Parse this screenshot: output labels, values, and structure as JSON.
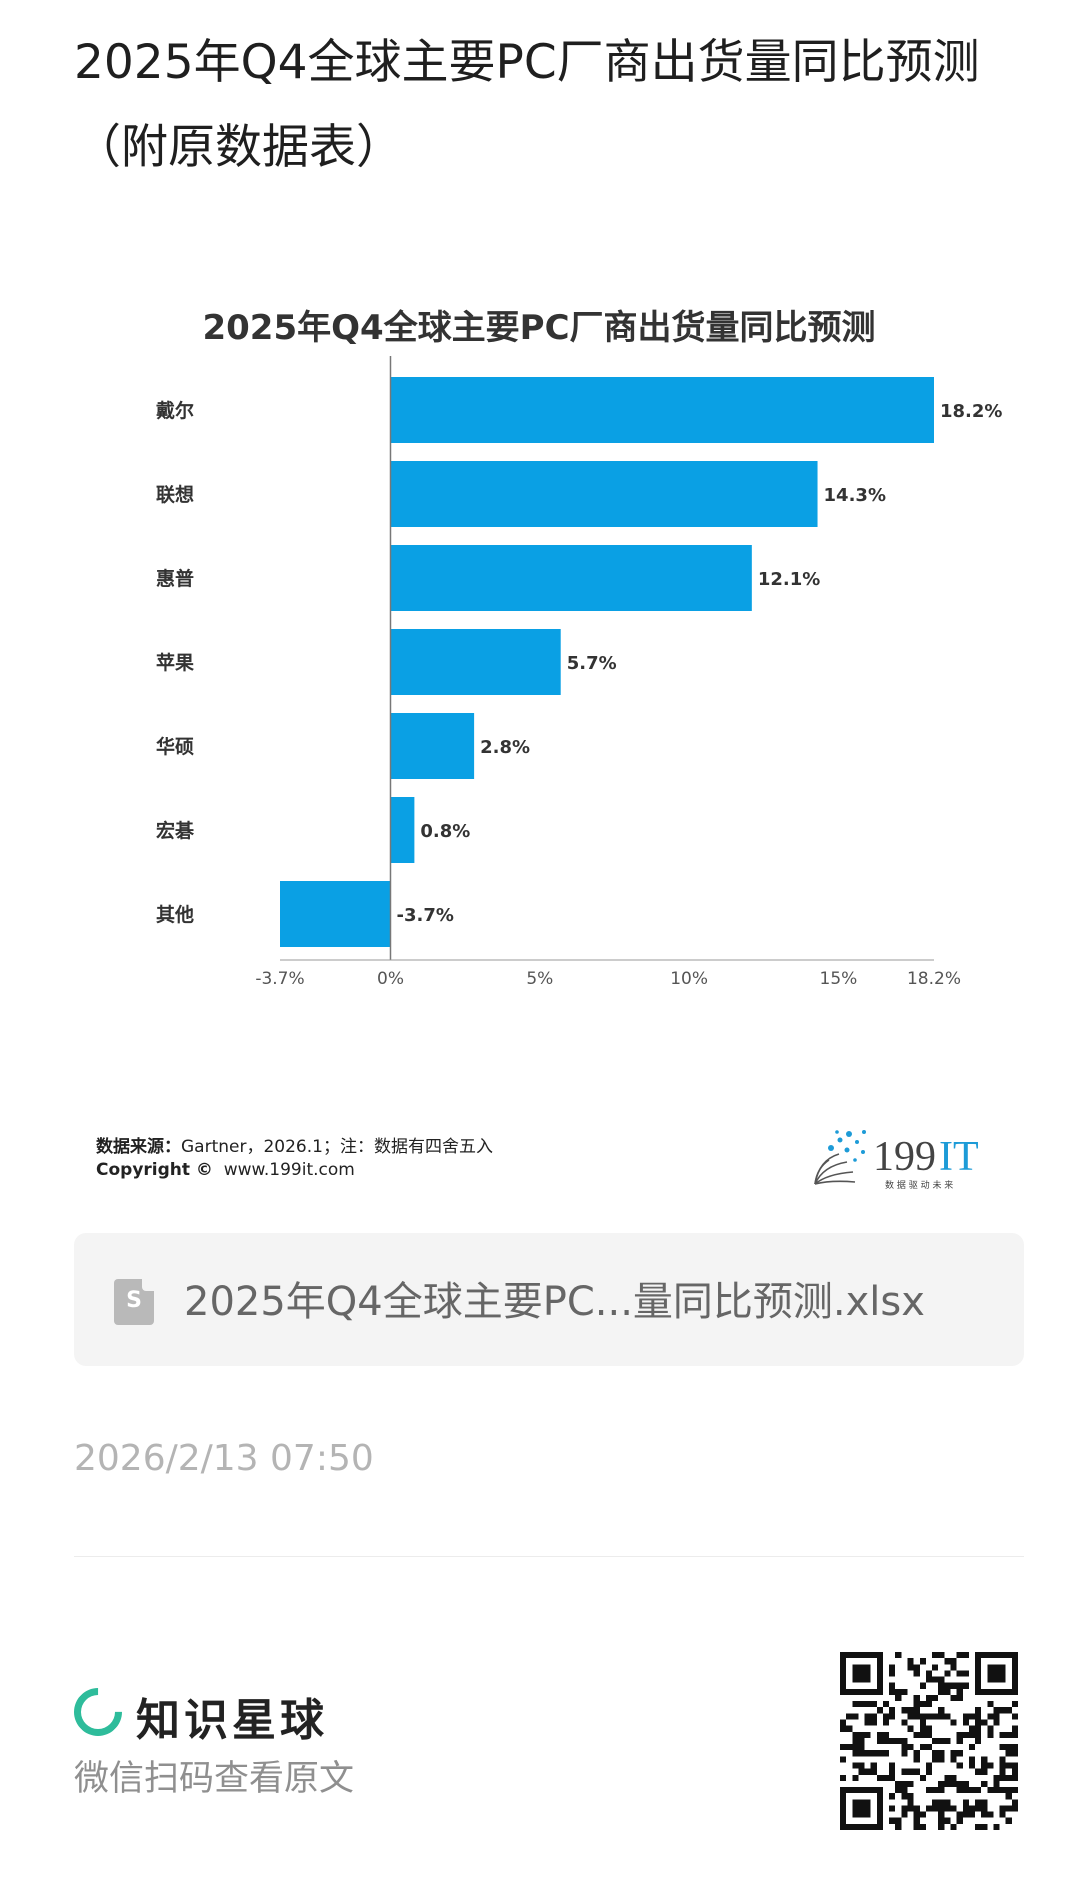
{
  "post": {
    "title": "2025年Q4全球主要PC厂商出货量同比预测（附原数据表）",
    "timestamp": "2026/2/13 07:50"
  },
  "chart_data": {
    "type": "bar",
    "orientation": "horizontal",
    "title": "2025年Q4全球主要PC厂商出货量同比预测",
    "categories": [
      "戴尔",
      "联想",
      "惠普",
      "苹果",
      "华硕",
      "宏碁",
      "其他"
    ],
    "values": [
      18.2,
      14.3,
      12.1,
      5.7,
      2.8,
      0.8,
      -3.7
    ],
    "value_labels": [
      "18.2%",
      "14.3%",
      "12.1%",
      "5.7%",
      "2.8%",
      "0.8%",
      "-3.7%"
    ],
    "x_ticks": [
      -3.7,
      0,
      5,
      10,
      15,
      18.2
    ],
    "x_tick_labels": [
      "-3.7%",
      "0%",
      "5%",
      "10%",
      "15%",
      "18.2%"
    ],
    "xlim": [
      -3.7,
      18.2
    ],
    "bar_color": "#0aa0e4",
    "grid": false
  },
  "source": {
    "label": "数据来源：",
    "text": "Gartner，2026.1；注：数据有四舍五入",
    "copyright_label": "Copyright ©",
    "copyright_text": "www.199it.com"
  },
  "logo": {
    "main": "199",
    "accent": "IT",
    "tagline": "数 据 驱 动 未 来",
    "accent_color": "#1d9bd7"
  },
  "file": {
    "icon": "spreadsheet-icon",
    "icon_letter": "S",
    "name": "2025年Q4全球主要PC...量同比预测.xlsx"
  },
  "brand": {
    "name": "知识星球",
    "subtitle": "微信扫码查看原文",
    "accent": "#2ebc9b"
  }
}
